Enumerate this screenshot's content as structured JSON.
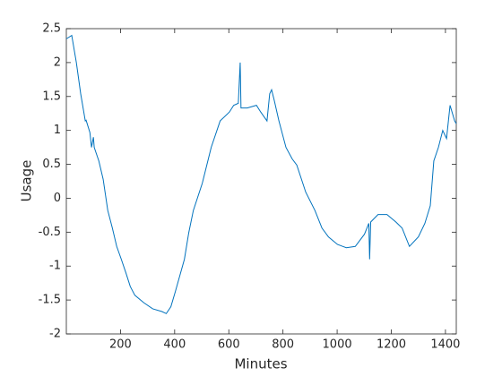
{
  "chart_data": {
    "type": "line",
    "xlabel": "Minutes",
    "ylabel": "Usage",
    "series": [
      {
        "color": "#0072bd",
        "x": [
          0,
          20,
          37,
          53,
          70,
          73,
          87,
          93,
          100,
          103,
          120,
          136,
          153,
          170,
          186,
          203,
          220,
          236,
          253,
          286,
          319,
          353,
          369,
          386,
          403,
          436,
          452,
          469,
          502,
          535,
          568,
          602,
          618,
          635,
          642,
          645,
          668,
          702,
          718,
          741,
          751,
          758,
          768,
          785,
          811,
          834,
          851,
          884,
          918,
          944,
          968,
          1001,
          1034,
          1067,
          1101,
          1117,
          1120,
          1124,
          1151,
          1184,
          1217,
          1240,
          1267,
          1300,
          1324,
          1344,
          1357,
          1374,
          1390,
          1404,
          1417,
          1434,
          1440
        ],
        "values": [
          2.35,
          2.4,
          2.0,
          1.54,
          1.14,
          1.15,
          0.97,
          0.75,
          0.9,
          0.75,
          0.55,
          0.28,
          -0.18,
          -0.44,
          -0.71,
          -0.9,
          -1.1,
          -1.3,
          -1.43,
          -1.54,
          -1.63,
          -1.67,
          -1.7,
          -1.6,
          -1.37,
          -0.9,
          -0.51,
          -0.18,
          0.22,
          0.75,
          1.14,
          1.27,
          1.37,
          1.4,
          2.0,
          1.33,
          1.33,
          1.37,
          1.27,
          1.14,
          1.54,
          1.6,
          1.44,
          1.14,
          0.75,
          0.58,
          0.49,
          0.09,
          -0.18,
          -0.44,
          -0.57,
          -0.68,
          -0.73,
          -0.71,
          -0.53,
          -0.37,
          -0.9,
          -0.35,
          -0.24,
          -0.24,
          -0.35,
          -0.44,
          -0.71,
          -0.57,
          -0.37,
          -0.11,
          0.55,
          0.75,
          1.0,
          0.88,
          1.37,
          1.14,
          1.1
        ]
      }
    ],
    "xlim": [
      0,
      1440
    ],
    "ylim": [
      -2,
      2.5
    ],
    "xticks": [
      200,
      400,
      600,
      800,
      1000,
      1200,
      1400
    ],
    "yticks": [
      -2,
      -1.5,
      -1,
      -0.5,
      0,
      0.5,
      1,
      1.5,
      2,
      2.5
    ]
  }
}
